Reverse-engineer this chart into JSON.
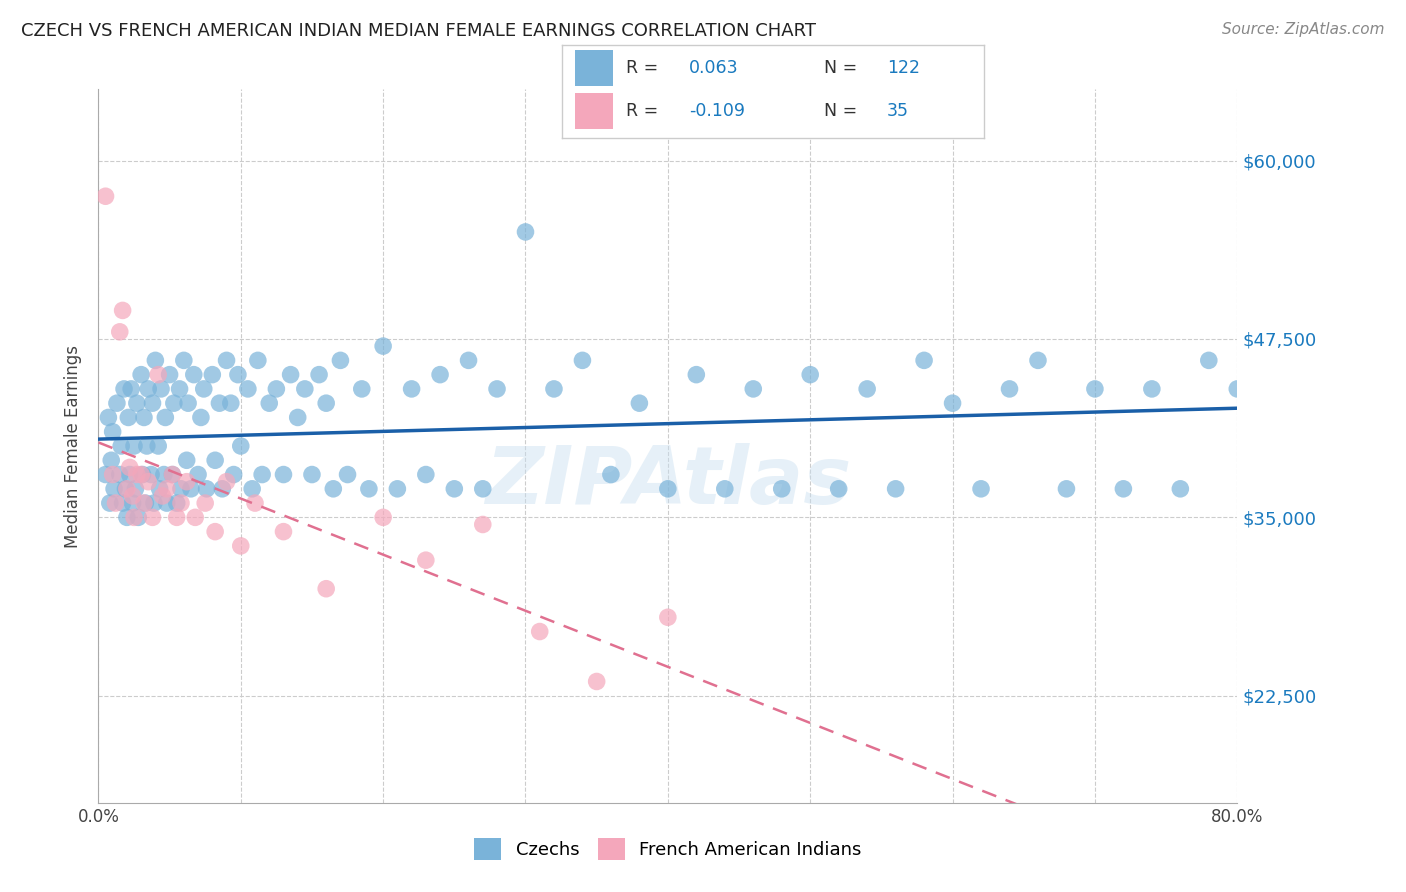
{
  "title": "CZECH VS FRENCH AMERICAN INDIAN MEDIAN FEMALE EARNINGS CORRELATION CHART",
  "source": "Source: ZipAtlas.com",
  "ylabel": "Median Female Earnings",
  "xlim": [
    0.0,
    0.8
  ],
  "ylim": [
    15000,
    65000
  ],
  "yticks": [
    22500,
    35000,
    47500,
    60000
  ],
  "ytick_labels": [
    "$22,500",
    "$35,000",
    "$47,500",
    "$60,000"
  ],
  "xticks": [
    0.0,
    0.1,
    0.2,
    0.3,
    0.4,
    0.5,
    0.6,
    0.7,
    0.8
  ],
  "xtick_labels": [
    "0.0%",
    "",
    "",
    "",
    "",
    "",
    "",
    "",
    "80.0%"
  ],
  "background_color": "#ffffff",
  "grid_color": "#cccccc",
  "watermark": "ZIPAtlas",
  "blue_color": "#7ab3d9",
  "pink_color": "#f4a7bb",
  "line_blue": "#1a5fa8",
  "line_pink": "#e07090",
  "r_value_color": "#1a7abf",
  "czechs_x": [
    0.005,
    0.007,
    0.008,
    0.009,
    0.01,
    0.011,
    0.013,
    0.015,
    0.016,
    0.017,
    0.018,
    0.019,
    0.02,
    0.021,
    0.022,
    0.023,
    0.024,
    0.025,
    0.026,
    0.027,
    0.028,
    0.03,
    0.031,
    0.032,
    0.033,
    0.034,
    0.035,
    0.037,
    0.038,
    0.039,
    0.04,
    0.042,
    0.043,
    0.044,
    0.046,
    0.047,
    0.048,
    0.05,
    0.052,
    0.053,
    0.055,
    0.057,
    0.058,
    0.06,
    0.062,
    0.063,
    0.065,
    0.067,
    0.07,
    0.072,
    0.074,
    0.076,
    0.08,
    0.082,
    0.085,
    0.087,
    0.09,
    0.093,
    0.095,
    0.098,
    0.1,
    0.105,
    0.108,
    0.112,
    0.115,
    0.12,
    0.125,
    0.13,
    0.135,
    0.14,
    0.145,
    0.15,
    0.155,
    0.16,
    0.165,
    0.17,
    0.175,
    0.185,
    0.19,
    0.2,
    0.21,
    0.22,
    0.23,
    0.24,
    0.25,
    0.26,
    0.27,
    0.28,
    0.3,
    0.32,
    0.34,
    0.36,
    0.38,
    0.4,
    0.42,
    0.44,
    0.46,
    0.48,
    0.5,
    0.52,
    0.54,
    0.56,
    0.58,
    0.6,
    0.62,
    0.64,
    0.66,
    0.68,
    0.7,
    0.72,
    0.74,
    0.76,
    0.78,
    0.8
  ],
  "czechs_y": [
    38000,
    42000,
    36000,
    39000,
    41000,
    37000,
    43000,
    38000,
    40000,
    36000,
    44000,
    37000,
    35000,
    42000,
    38000,
    44000,
    36000,
    40000,
    37000,
    43000,
    35000,
    45000,
    38000,
    42000,
    36000,
    40000,
    44000,
    38000,
    43000,
    36000,
    46000,
    40000,
    37000,
    44000,
    38000,
    42000,
    36000,
    45000,
    38000,
    43000,
    36000,
    44000,
    37000,
    46000,
    39000,
    43000,
    37000,
    45000,
    38000,
    42000,
    44000,
    37000,
    45000,
    39000,
    43000,
    37000,
    46000,
    43000,
    38000,
    45000,
    40000,
    44000,
    37000,
    46000,
    38000,
    43000,
    44000,
    38000,
    45000,
    42000,
    44000,
    38000,
    45000,
    43000,
    37000,
    46000,
    38000,
    44000,
    37000,
    47000,
    37000,
    44000,
    38000,
    45000,
    37000,
    46000,
    37000,
    44000,
    55000,
    44000,
    46000,
    38000,
    43000,
    37000,
    45000,
    37000,
    44000,
    37000,
    45000,
    37000,
    44000,
    37000,
    46000,
    43000,
    37000,
    44000,
    46000,
    37000,
    44000,
    37000,
    44000,
    37000,
    46000,
    44000
  ],
  "french_x": [
    0.005,
    0.01,
    0.012,
    0.015,
    0.017,
    0.02,
    0.022,
    0.024,
    0.025,
    0.027,
    0.03,
    0.032,
    0.035,
    0.038,
    0.042,
    0.045,
    0.048,
    0.052,
    0.055,
    0.058,
    0.062,
    0.068,
    0.075,
    0.082,
    0.09,
    0.1,
    0.11,
    0.13,
    0.16,
    0.2,
    0.23,
    0.27,
    0.31,
    0.35,
    0.4
  ],
  "french_y": [
    57500,
    38000,
    36000,
    48000,
    49500,
    37000,
    38500,
    36500,
    35000,
    38000,
    38000,
    36000,
    37500,
    35000,
    45000,
    36500,
    37000,
    38000,
    35000,
    36000,
    37500,
    35000,
    36000,
    34000,
    37500,
    33000,
    36000,
    34000,
    30000,
    35000,
    32000,
    34500,
    27000,
    23500,
    28000
  ]
}
